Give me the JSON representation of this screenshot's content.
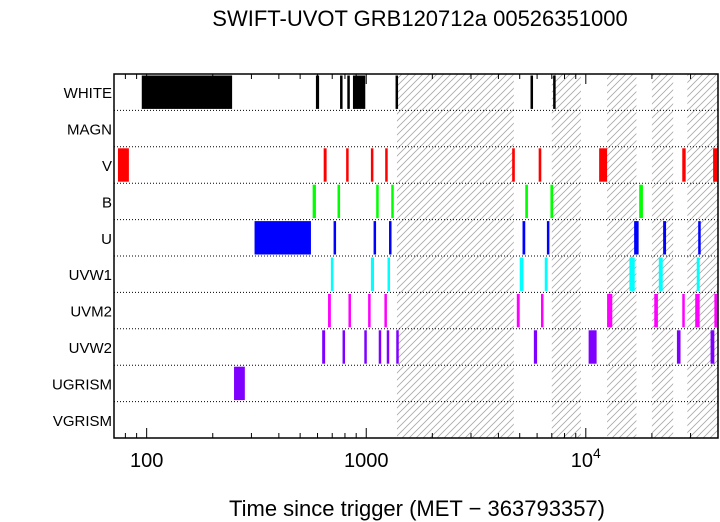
{
  "chart_data": {
    "type": "timeline",
    "title": "SWIFT-UVOT GRB120712a 00526351000",
    "xlabel": "Time since trigger (MET − 363793357)",
    "xscale": "log",
    "xlim": [
      71,
      40000
    ],
    "xticks": [
      {
        "value": 100,
        "label": "100"
      },
      {
        "value": 1000,
        "label": "1000"
      },
      {
        "value": 10000,
        "label": "10",
        "exponent": "4"
      }
    ],
    "rows": [
      {
        "name": "WHITE",
        "color": "#000000",
        "segments": [
          [
            95,
            245
          ],
          [
            590,
            610
          ],
          [
            760,
            780
          ],
          [
            820,
            840
          ],
          [
            870,
            990
          ],
          [
            1360,
            1375
          ],
          [
            5600,
            5750
          ],
          [
            7100,
            7200
          ]
        ]
      },
      {
        "name": "MAGN",
        "color": "#000000",
        "segments": []
      },
      {
        "name": "V",
        "color": "#ff0000",
        "segments": [
          [
            74,
            83
          ],
          [
            640,
            660
          ],
          [
            810,
            830
          ],
          [
            1050,
            1070
          ],
          [
            1220,
            1240
          ],
          [
            4620,
            4750
          ],
          [
            6100,
            6270
          ],
          [
            11500,
            12500
          ],
          [
            27500,
            28500
          ],
          [
            38000,
            40000
          ]
        ]
      },
      {
        "name": "B",
        "color": "#00ff00",
        "segments": [
          [
            570,
            590
          ],
          [
            740,
            760
          ],
          [
            1110,
            1130
          ],
          [
            1300,
            1320
          ],
          [
            5300,
            5450
          ],
          [
            6900,
            7100
          ],
          [
            17500,
            18200
          ]
        ]
      },
      {
        "name": "U",
        "color": "#0000ff",
        "segments": [
          [
            310,
            560
          ],
          [
            710,
            725
          ],
          [
            1080,
            1095
          ],
          [
            1270,
            1290
          ],
          [
            5150,
            5300
          ],
          [
            6650,
            6800
          ],
          [
            16600,
            17400
          ],
          [
            22500,
            23200
          ],
          [
            32500,
            33200
          ]
        ]
      },
      {
        "name": "UVW1",
        "color": "#00ffff",
        "segments": [
          [
            690,
            705
          ],
          [
            1050,
            1085
          ],
          [
            1250,
            1275
          ],
          [
            5000,
            5200
          ],
          [
            6500,
            6700
          ],
          [
            15800,
            16700
          ],
          [
            21500,
            22400
          ],
          [
            32000,
            33000
          ]
        ]
      },
      {
        "name": "UVM2",
        "color": "#ff00ff",
        "segments": [
          [
            670,
            690
          ],
          [
            830,
            850
          ],
          [
            1020,
            1045
          ],
          [
            1210,
            1240
          ],
          [
            4850,
            5000
          ],
          [
            6250,
            6400
          ],
          [
            12500,
            13200
          ],
          [
            20500,
            21300
          ],
          [
            27500,
            28000
          ],
          [
            31500,
            33000
          ],
          [
            38500,
            40000
          ]
        ]
      },
      {
        "name": "UVW2",
        "color": "#8000ff",
        "segments": [
          [
            630,
            650
          ],
          [
            780,
            800
          ],
          [
            980,
            1000
          ],
          [
            1140,
            1160
          ],
          [
            1240,
            1260
          ],
          [
            1370,
            1390
          ],
          [
            5800,
            6000
          ],
          [
            10300,
            11200
          ],
          [
            26000,
            27000
          ],
          [
            37000,
            38500
          ]
        ]
      },
      {
        "name": "UGRISM",
        "color": "#8000ff",
        "segments": [
          [
            250,
            280
          ]
        ]
      },
      {
        "name": "VGRISM",
        "color": "#000000",
        "segments": []
      }
    ],
    "saa_shading": [
      [
        1380,
        4700
      ],
      [
        7000,
        9500
      ],
      [
        12500,
        17000
      ],
      [
        20000,
        25000
      ],
      [
        29000,
        40000
      ]
    ],
    "grid": "dotted row separators"
  }
}
